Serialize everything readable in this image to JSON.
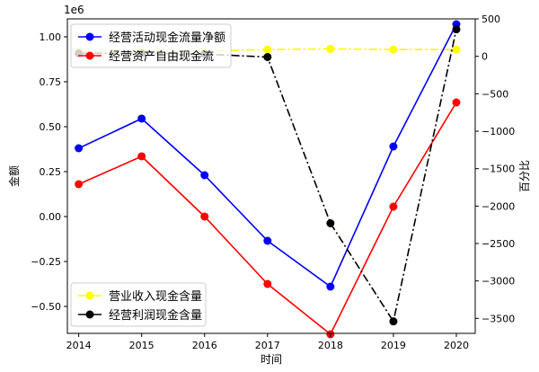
{
  "chart_data": {
    "type": "line",
    "x": [
      2014,
      2015,
      2016,
      2017,
      2018,
      2019,
      2020
    ],
    "xlabel": "时间",
    "ylabel_left": "金额",
    "ylabel_right": "百分比",
    "left_axis_multiplier": "1e6",
    "ylim_left": [
      -0.65,
      1.1
    ],
    "ylim_right": [
      -3700,
      500
    ],
    "yticks_left": [
      "1.00",
      "0.75",
      "0.50",
      "0.25",
      "0.00",
      "−0.25",
      "−0.50"
    ],
    "yticks_left_values": [
      1.0,
      0.75,
      0.5,
      0.25,
      0.0,
      -0.25,
      -0.5
    ],
    "yticks_right": [
      "500",
      "0",
      "−500",
      "−1000",
      "−1500",
      "−2000",
      "−2500",
      "−3000",
      "−3500"
    ],
    "yticks_right_values": [
      500,
      0,
      -500,
      -1000,
      -1500,
      -2000,
      -2500,
      -3000,
      -3500
    ],
    "series": [
      {
        "name": "经营活动现金流量净额",
        "axis": "left",
        "color": "#0000ff",
        "style": "solid",
        "values": [
          0.38,
          0.545,
          0.23,
          -0.135,
          -0.39,
          0.39,
          1.07
        ]
      },
      {
        "name": "经营资产自由现金流",
        "axis": "left",
        "color": "#ff0000",
        "style": "solid",
        "values": [
          0.18,
          0.335,
          0.0,
          -0.375,
          -0.655,
          0.055,
          0.635
        ]
      },
      {
        "name": "营业收入现金含量",
        "axis": "right",
        "color": "#ffff00",
        "style": "dashdot",
        "values": [
          60,
          70,
          70,
          90,
          100,
          90,
          90
        ]
      },
      {
        "name": "经营利润现金含量",
        "axis": "right",
        "color": "#000000",
        "style": "dashdot",
        "values": [
          40,
          40,
          30,
          -10,
          -2230,
          -3540,
          360
        ]
      }
    ],
    "legend_top": {
      "placement": "top-left",
      "items": [
        "经营活动现金流量净额",
        "经营资产自由现金流"
      ]
    },
    "legend_bottom": {
      "placement": "bottom-left",
      "items": [
        "营业收入现金含量",
        "经营利润现金含量"
      ]
    },
    "grid": false
  }
}
